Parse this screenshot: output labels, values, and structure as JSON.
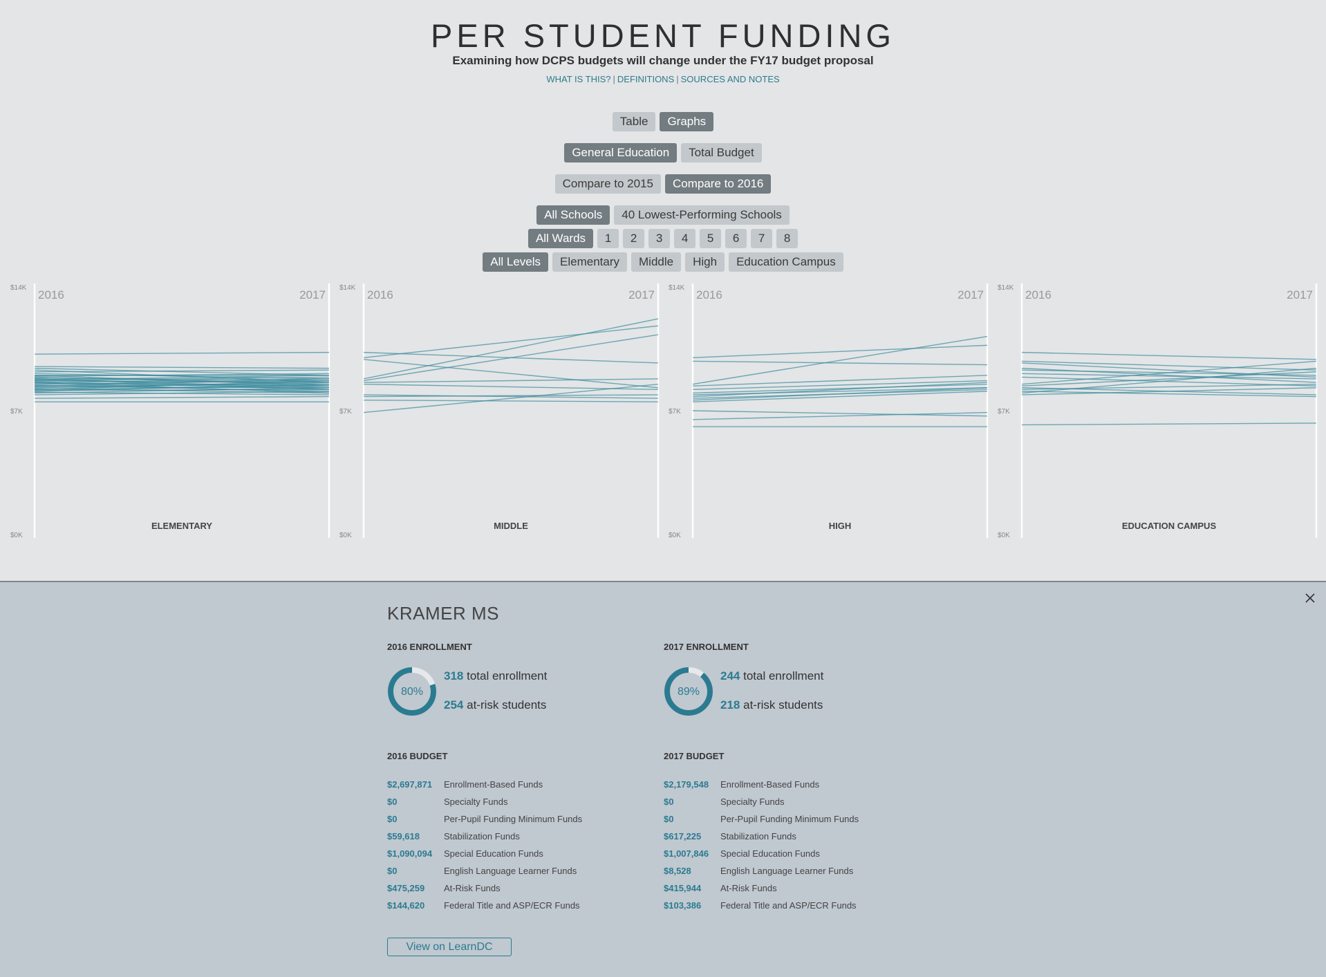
{
  "header": {
    "title": "PER STUDENT FUNDING",
    "subtitle": "Examining how DCPS budgets will change under the FY17 budget proposal",
    "links": [
      "WHAT IS THIS?",
      "DEFINITIONS",
      "SOURCES AND NOTES"
    ]
  },
  "view_toggle": [
    {
      "label": "Table",
      "active": false
    },
    {
      "label": "Graphs",
      "active": true
    }
  ],
  "budget_toggle": [
    {
      "label": "General Education",
      "active": true
    },
    {
      "label": "Total Budget",
      "active": false
    }
  ],
  "compare_toggle": [
    {
      "label": "Compare to 2015",
      "active": false
    },
    {
      "label": "Compare to 2016",
      "active": true
    }
  ],
  "school_filter": [
    {
      "label": "All Schools",
      "active": true
    },
    {
      "label": "40 Lowest-Performing Schools",
      "active": false
    }
  ],
  "ward_filter": [
    {
      "label": "All Wards",
      "active": true
    },
    {
      "label": "1",
      "active": false
    },
    {
      "label": "2",
      "active": false
    },
    {
      "label": "3",
      "active": false
    },
    {
      "label": "4",
      "active": false
    },
    {
      "label": "5",
      "active": false
    },
    {
      "label": "6",
      "active": false
    },
    {
      "label": "7",
      "active": false
    },
    {
      "label": "8",
      "active": false
    }
  ],
  "level_filter": [
    {
      "label": "All Levels",
      "active": true
    },
    {
      "label": "Elementary",
      "active": false
    },
    {
      "label": "Middle",
      "active": false
    },
    {
      "label": "High",
      "active": false
    },
    {
      "label": "Education Campus",
      "active": false
    }
  ],
  "colors": {
    "line": "#3b8a9c",
    "accent": "#2b7b90",
    "active_button": "#737c80",
    "button": "#c3c8cc"
  },
  "chart_data": [
    {
      "type": "line",
      "title": "ELEMENTARY",
      "x": [
        "2016",
        "2017"
      ],
      "yticks": [
        "$14K",
        "$7K",
        "$0K"
      ],
      "ylim": [
        0,
        14000
      ],
      "series": [
        {
          "values": [
            10200,
            10300
          ]
        },
        {
          "values": [
            9500,
            9400
          ]
        },
        {
          "values": [
            9400,
            9000
          ]
        },
        {
          "values": [
            9300,
            8600
          ]
        },
        {
          "values": [
            9200,
            9300
          ]
        },
        {
          "values": [
            9100,
            8800
          ]
        },
        {
          "values": [
            9000,
            8400
          ]
        },
        {
          "values": [
            8950,
            9100
          ]
        },
        {
          "values": [
            8900,
            8500
          ]
        },
        {
          "values": [
            8850,
            8700
          ]
        },
        {
          "values": [
            8800,
            8300
          ]
        },
        {
          "values": [
            8750,
            9000
          ]
        },
        {
          "values": [
            8700,
            8600
          ]
        },
        {
          "values": [
            8650,
            8200
          ]
        },
        {
          "values": [
            8600,
            8800
          ]
        },
        {
          "values": [
            8550,
            8400
          ]
        },
        {
          "values": [
            8500,
            8700
          ]
        },
        {
          "values": [
            8450,
            8100
          ]
        },
        {
          "values": [
            8400,
            8500
          ]
        },
        {
          "values": [
            8350,
            8300
          ]
        },
        {
          "values": [
            8300,
            8600
          ]
        },
        {
          "values": [
            8250,
            8000
          ]
        },
        {
          "values": [
            8200,
            8400
          ]
        },
        {
          "values": [
            8150,
            8200
          ]
        },
        {
          "values": [
            8100,
            8500
          ]
        },
        {
          "values": [
            8050,
            7900
          ]
        },
        {
          "values": [
            8000,
            8300
          ]
        },
        {
          "values": [
            7900,
            8100
          ]
        },
        {
          "values": [
            7700,
            7800
          ]
        },
        {
          "values": [
            7500,
            7500
          ]
        },
        {
          "values": [
            9000,
            9000
          ]
        },
        {
          "values": [
            8700,
            8900
          ]
        },
        {
          "values": [
            8400,
            8800
          ]
        },
        {
          "values": [
            8200,
            8700
          ]
        },
        {
          "values": [
            8800,
            8200
          ]
        },
        {
          "values": [
            8600,
            8000
          ]
        }
      ]
    },
    {
      "type": "line",
      "title": "MIDDLE",
      "x": [
        "2016",
        "2017"
      ],
      "yticks": [
        "$14K",
        "$7K",
        "$0K"
      ],
      "ylim": [
        0,
        14000
      ],
      "series": [
        {
          "values": [
            10300,
            9700
          ]
        },
        {
          "values": [
            10000,
            11800
          ]
        },
        {
          "values": [
            9900,
            8300
          ]
        },
        {
          "values": [
            8800,
            12200
          ]
        },
        {
          "values": [
            8700,
            11300
          ]
        },
        {
          "values": [
            8600,
            8800
          ]
        },
        {
          "values": [
            8500,
            8200
          ]
        },
        {
          "values": [
            7900,
            7700
          ]
        },
        {
          "values": [
            7800,
            7900
          ]
        },
        {
          "values": [
            7600,
            7500
          ]
        },
        {
          "values": [
            6900,
            8500
          ]
        }
      ]
    },
    {
      "type": "line",
      "title": "HIGH",
      "x": [
        "2016",
        "2017"
      ],
      "yticks": [
        "$14K",
        "$7K",
        "$0K"
      ],
      "ylim": [
        0,
        14000
      ],
      "series": [
        {
          "values": [
            10000,
            10700
          ]
        },
        {
          "values": [
            9800,
            9600
          ]
        },
        {
          "values": [
            8500,
            11200
          ]
        },
        {
          "values": [
            8400,
            9000
          ]
        },
        {
          "values": [
            8200,
            8700
          ]
        },
        {
          "values": [
            8000,
            8500
          ]
        },
        {
          "values": [
            7900,
            8300
          ]
        },
        {
          "values": [
            7800,
            8600
          ]
        },
        {
          "values": [
            7700,
            8200
          ]
        },
        {
          "values": [
            7600,
            8300
          ]
        },
        {
          "values": [
            7500,
            8100
          ]
        },
        {
          "values": [
            7000,
            6700
          ]
        },
        {
          "values": [
            6500,
            6900
          ]
        },
        {
          "values": [
            6100,
            6100
          ]
        }
      ]
    },
    {
      "type": "line",
      "title": "EDUCATION CAMPUS",
      "x": [
        "2016",
        "2017"
      ],
      "yticks": [
        "$14K",
        "$7K",
        "$0K"
      ],
      "ylim": [
        0,
        14000
      ],
      "series": [
        {
          "values": [
            10300,
            9900
          ]
        },
        {
          "values": [
            9800,
            9300
          ]
        },
        {
          "values": [
            9700,
            8900
          ]
        },
        {
          "values": [
            9400,
            8600
          ]
        },
        {
          "values": [
            9300,
            9000
          ]
        },
        {
          "values": [
            9100,
            8800
          ]
        },
        {
          "values": [
            8900,
            8400
          ]
        },
        {
          "values": [
            8500,
            9800
          ]
        },
        {
          "values": [
            8400,
            9200
          ]
        },
        {
          "values": [
            8300,
            7900
          ]
        },
        {
          "values": [
            8200,
            8500
          ]
        },
        {
          "values": [
            8100,
            7800
          ]
        },
        {
          "values": [
            8000,
            9400
          ]
        },
        {
          "values": [
            7900,
            8300
          ]
        },
        {
          "values": [
            6200,
            6300
          ]
        }
      ]
    }
  ],
  "detail": {
    "close_icon": "close-icon",
    "school": "KRAMER MS",
    "y2016": {
      "enroll_heading": "2016 ENROLLMENT",
      "pct": "80%",
      "pct_value": 80,
      "total": "318",
      "total_label": "total enrollment",
      "atrisk": "254",
      "atrisk_label": "at-risk students",
      "budget_heading": "2016 BUDGET",
      "budget": [
        {
          "amount": "$2,697,871",
          "label": "Enrollment-Based Funds"
        },
        {
          "amount": "$0",
          "label": "Specialty Funds"
        },
        {
          "amount": "$0",
          "label": "Per-Pupil Funding Minimum Funds"
        },
        {
          "amount": "$59,618",
          "label": "Stabilization Funds"
        },
        {
          "amount": "$1,090,094",
          "label": "Special Education Funds"
        },
        {
          "amount": "$0",
          "label": "English Language Learner Funds"
        },
        {
          "amount": "$475,259",
          "label": "At-Risk Funds"
        },
        {
          "amount": "$144,620",
          "label": "Federal Title and ASP/ECR Funds"
        }
      ]
    },
    "y2017": {
      "enroll_heading": "2017 ENROLLMENT",
      "pct": "89%",
      "pct_value": 89,
      "total": "244",
      "total_label": "total enrollment",
      "atrisk": "218",
      "atrisk_label": "at-risk students",
      "budget_heading": "2017 BUDGET",
      "budget": [
        {
          "amount": "$2,179,548",
          "label": "Enrollment-Based Funds"
        },
        {
          "amount": "$0",
          "label": "Specialty Funds"
        },
        {
          "amount": "$0",
          "label": "Per-Pupil Funding Minimum Funds"
        },
        {
          "amount": "$617,225",
          "label": "Stabilization Funds"
        },
        {
          "amount": "$1,007,846",
          "label": "Special Education Funds"
        },
        {
          "amount": "$8,528",
          "label": "English Language Learner Funds"
        },
        {
          "amount": "$415,944",
          "label": "At-Risk Funds"
        },
        {
          "amount": "$103,386",
          "label": "Federal Title and ASP/ECR Funds"
        }
      ]
    },
    "learn_button": "View on LearnDC"
  }
}
